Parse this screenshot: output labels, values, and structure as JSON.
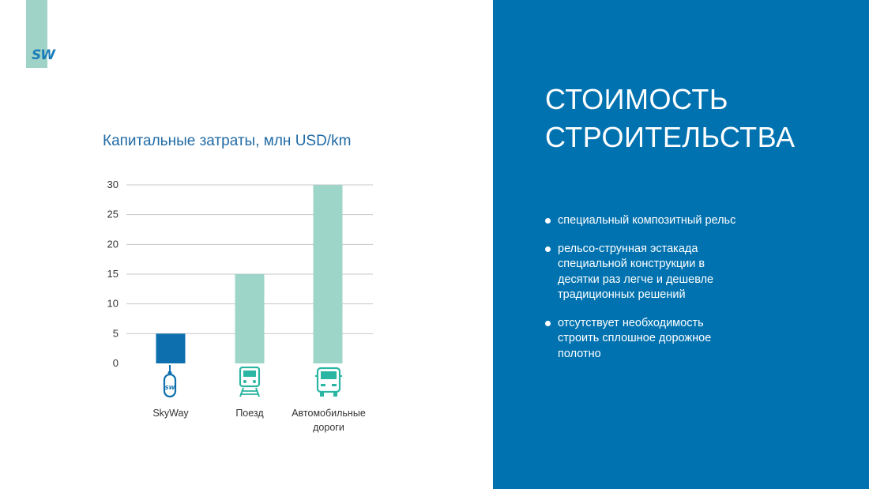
{
  "logo": {
    "text": "SW"
  },
  "chart_title": "Капитальные затраты, млн USD/km",
  "chart_data": {
    "type": "bar",
    "title": "Капитальные затраты, млн USD/km",
    "categories": [
      "SkyWay",
      "Поезд",
      "Автомобильные дороги"
    ],
    "values": [
      5,
      15,
      30
    ],
    "ylim": [
      0,
      30
    ],
    "yticks": [
      0,
      5,
      10,
      15,
      20,
      25,
      30
    ],
    "grid": true,
    "colors": [
      "#0e6fae",
      "#9dd5c9",
      "#9dd5c9"
    ]
  },
  "categories_display": {
    "skyway": "SkyWay",
    "train": "Поезд",
    "road_line1": "Автомобильные",
    "road_line2": "дороги"
  },
  "icons": {
    "skyway": "skyway-unibus-icon",
    "train": "train-icon",
    "road": "truck-icon",
    "icon_colors": {
      "skyway": "#0e6fae",
      "train": "#2bb5a3",
      "road": "#2bb5a3"
    }
  },
  "panel": {
    "title_line1": "СТОИМОСТЬ",
    "title_line2": "СТРОИТЕЛЬСТВА",
    "bullets": [
      "специальный композитный рельс",
      "рельсо-струнная эстакада специальной конструкции в десятки раз легче и дешевле традиционных решений",
      "отсутствует необходимость строить сплошное дорожное полотно"
    ],
    "background": "#0172b0"
  }
}
